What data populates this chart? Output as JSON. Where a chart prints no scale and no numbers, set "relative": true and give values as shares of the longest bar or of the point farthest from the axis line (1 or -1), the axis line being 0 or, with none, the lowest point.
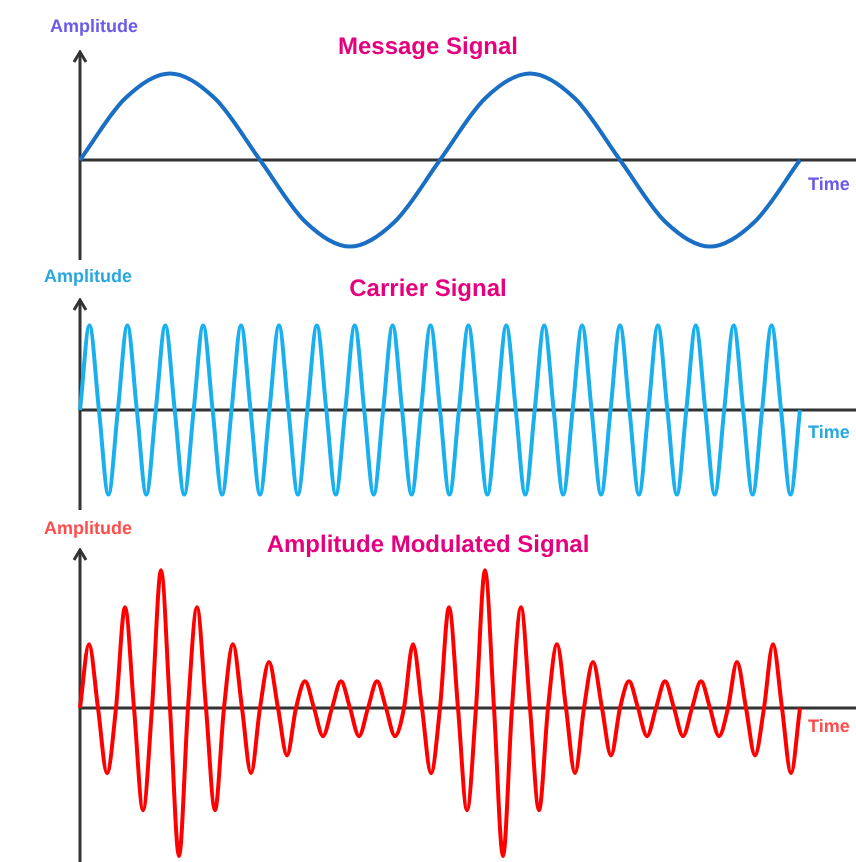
{
  "chart_data": [
    {
      "type": "line",
      "title": "Message Signal",
      "xlabel": "Time",
      "ylabel": "Amplitude",
      "relative": true,
      "categories": [
        null,
        null,
        null,
        null,
        null,
        null,
        null,
        null,
        null,
        null,
        null,
        null,
        null,
        null,
        null,
        null,
        null
      ],
      "series": [
        {
          "color": "#1a6fc4",
          "values": [
            0,
            0.71,
            1,
            0.71,
            0,
            -0.71,
            -1,
            -0.71,
            0,
            0.71,
            1,
            0.71,
            0,
            -0.71,
            -1,
            -0.71,
            0
          ]
        }
      ]
    },
    {
      "type": "line",
      "title": "Carrier Signal",
      "xlabel": "Time",
      "ylabel": "Amplitude",
      "relative": true,
      "categories": [
        null,
        null,
        null,
        null,
        null,
        null,
        null,
        null,
        null,
        null,
        null,
        null,
        null,
        null,
        null,
        null,
        null,
        null,
        null,
        null,
        null,
        null,
        null,
        null,
        null,
        null,
        null,
        null,
        null,
        null,
        null,
        null,
        null,
        null,
        null,
        null,
        null,
        null,
        null,
        null,
        null,
        null,
        null,
        null,
        null,
        null,
        null,
        null,
        null,
        null,
        null,
        null,
        null,
        null,
        null,
        null,
        null,
        null,
        null,
        null,
        null,
        null,
        null,
        null,
        null,
        null,
        null,
        null,
        null,
        null,
        null,
        null,
        null,
        null,
        null,
        null,
        null
      ],
      "series": [
        {
          "color": "#1ab0ee",
          "values": [
            0,
            1,
            0,
            -1,
            0,
            1,
            0,
            -1,
            0,
            1,
            0,
            -1,
            0,
            1,
            0,
            -1,
            0,
            1,
            0,
            -1,
            0,
            1,
            0,
            -1,
            0,
            1,
            0,
            -1,
            0,
            1,
            0,
            -1,
            0,
            1,
            0,
            -1,
            0,
            1,
            0,
            -1,
            0,
            1,
            0,
            -1,
            0,
            1,
            0,
            -1,
            0,
            1,
            0,
            -1,
            0,
            1,
            0,
            -1,
            0,
            1,
            0,
            -1,
            0,
            1,
            0,
            -1,
            0,
            1,
            0,
            -1,
            0,
            1,
            0,
            -1,
            0,
            1,
            0,
            -1,
            0
          ]
        }
      ]
    },
    {
      "type": "line",
      "title": "Amplitude Modulated Signal",
      "xlabel": "Time",
      "ylabel": "Amplitude",
      "relative": true,
      "categories": [
        null,
        null,
        null,
        null,
        null,
        null,
        null,
        null,
        null,
        null,
        null,
        null,
        null,
        null,
        null,
        null,
        null,
        null,
        null,
        null,
        null,
        null,
        null,
        null,
        null,
        null,
        null,
        null,
        null,
        null,
        null,
        null,
        null,
        null,
        null,
        null,
        null,
        null,
        null,
        null,
        null,
        null,
        null,
        null,
        null,
        null,
        null,
        null,
        null,
        null,
        null,
        null,
        null,
        null,
        null,
        null,
        null,
        null,
        null,
        null,
        null,
        null,
        null,
        null,
        null,
        null,
        null,
        null,
        null,
        null,
        null,
        null,
        null,
        null,
        null,
        null,
        null,
        null,
        null,
        null,
        null
      ],
      "series": [
        {
          "color": "#ff0000",
          "values": [
            0,
            0.43,
            0,
            -0.44,
            0,
            0.68,
            0,
            -0.69,
            0,
            0.93,
            0,
            -1,
            0,
            0.68,
            0,
            -0.69,
            0,
            0.43,
            0,
            -0.44,
            0,
            0.31,
            0,
            -0.32,
            0,
            0.18,
            0,
            -0.19,
            0,
            0.18,
            0,
            -0.19,
            0,
            0.18,
            0,
            -0.19,
            0,
            0.43,
            0,
            -0.44,
            0,
            0.68,
            0,
            -0.69,
            0,
            0.93,
            0,
            -1,
            0,
            0.68,
            0,
            -0.69,
            0,
            0.43,
            0,
            -0.44,
            0,
            0.31,
            0,
            -0.32,
            0,
            0.18,
            0,
            -0.19,
            0,
            0.18,
            0,
            -0.19,
            0,
            0.18,
            0,
            -0.19,
            0,
            0.31,
            0,
            -0.32,
            0,
            0.43,
            0,
            -0.44,
            0
          ]
        }
      ]
    }
  ]
}
